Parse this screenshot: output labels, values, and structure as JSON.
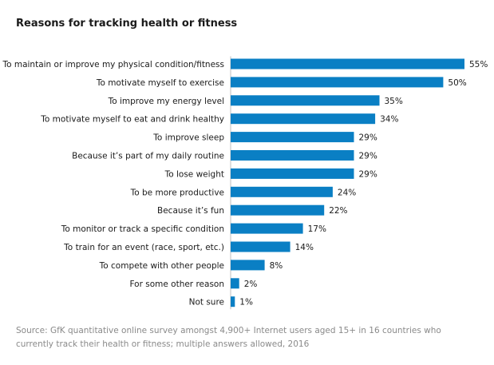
{
  "chart_data": {
    "type": "bar",
    "orientation": "horizontal",
    "title": "Reasons for tracking health or fitness",
    "xlabel": "",
    "ylabel": "",
    "value_suffix": "%",
    "xlim": [
      0,
      55
    ],
    "grid": false,
    "bar_color": "#0a7fc4",
    "categories": [
      "To maintain or improve my physical condition/fitness",
      "To motivate myself to exercise",
      "To improve my energy level",
      "To motivate myself to eat and drink healthy",
      "To improve sleep",
      "Because it’s part of my daily routine",
      "To lose weight",
      "To be more productive",
      "Because it’s fun",
      "To monitor or track a specific condition",
      "To train for an event (race, sport, etc.)",
      "To compete with other people",
      "For some other reason",
      "Not sure"
    ],
    "values": [
      55,
      50,
      35,
      34,
      29,
      29,
      29,
      24,
      22,
      17,
      14,
      8,
      2,
      1
    ],
    "source": "Source: GfK quantitative online survey amongst 4,900+ Internet users aged 15+ in 16 countries who currently track their health or fitness; multiple answers allowed, 2016"
  }
}
